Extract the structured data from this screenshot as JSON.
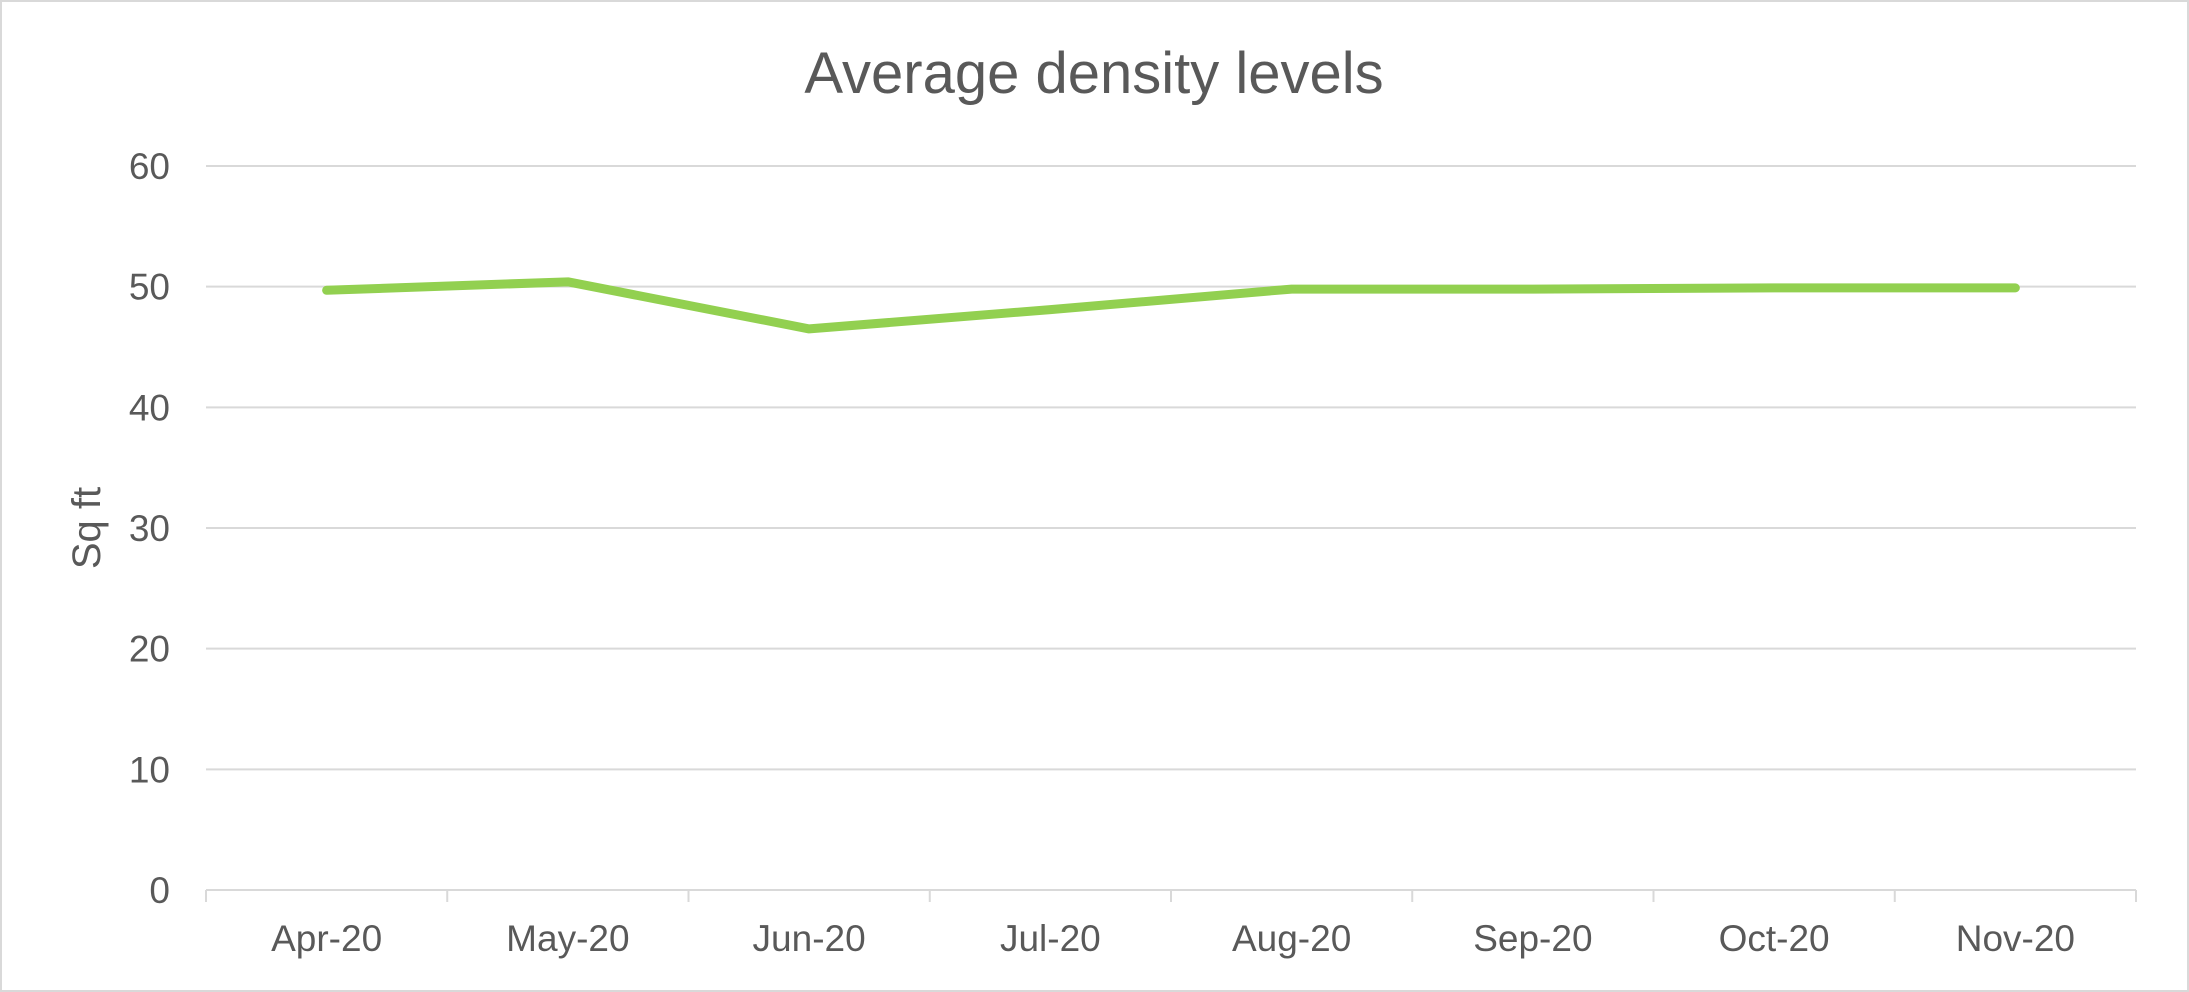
{
  "chart_data": {
    "type": "line",
    "title": "Average density levels",
    "xlabel": "",
    "ylabel": "Sq ft",
    "categories": [
      "Apr-20",
      "May-20",
      "Jun-20",
      "Jul-20",
      "Aug-20",
      "Sep-20",
      "Oct-20",
      "Nov-20"
    ],
    "series": [
      {
        "values": [
          49.7,
          50.4,
          46.5,
          48.1,
          49.8,
          49.8,
          49.9,
          49.9
        ],
        "color": "#92d050"
      }
    ],
    "ylim": [
      0,
      60
    ],
    "yticks": [
      "0",
      "10",
      "20",
      "30",
      "40",
      "50",
      "60"
    ],
    "grid": true,
    "legend": "none"
  }
}
